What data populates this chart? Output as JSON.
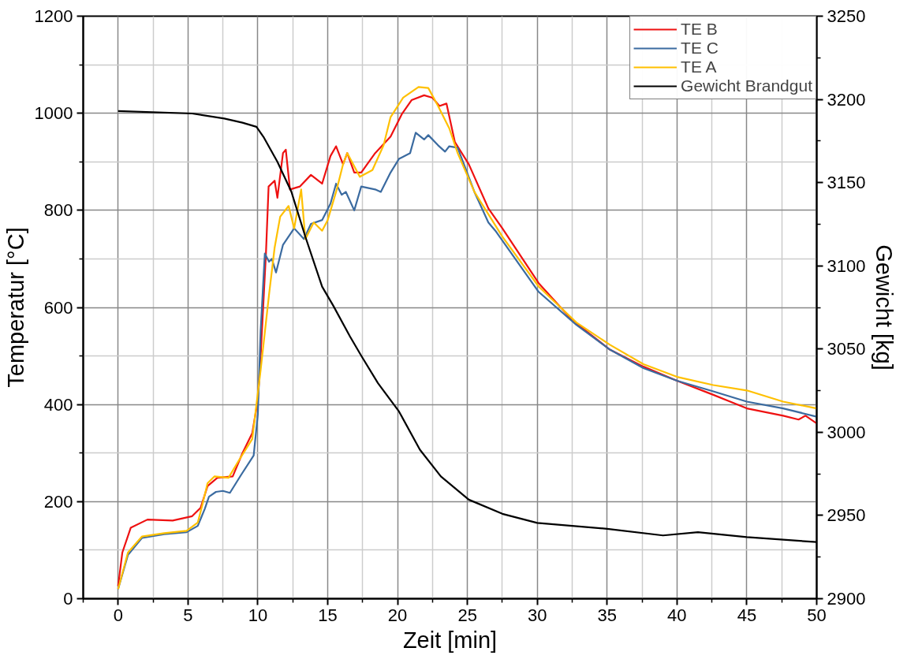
{
  "chart_data": {
    "type": "line",
    "xlabel": "Zeit [min]",
    "ylabel": "Temperatur [°C]",
    "y2label": "Gewicht [kg]",
    "xlim": [
      -2.5,
      50
    ],
    "xticks": [
      0,
      5,
      10,
      15,
      20,
      25,
      30,
      35,
      40,
      45,
      50
    ],
    "ylim": [
      0,
      1200
    ],
    "yticks": [
      0,
      200,
      400,
      600,
      800,
      1000,
      1200
    ],
    "y2lim": [
      2900,
      3250
    ],
    "y2ticks": [
      2900,
      2950,
      3000,
      3050,
      3100,
      3150,
      3200,
      3250
    ],
    "grid": true,
    "legend": "top right",
    "line_style": "solid",
    "marker": "none",
    "series": [
      {
        "name": "TE B",
        "color": "#ee1111",
        "x": [
          0,
          0.3,
          0.9,
          2.1,
          3.9,
          5.3,
          5.9,
          6.4,
          7.1,
          8.2,
          8.9,
          9.6,
          10.0,
          10.2,
          10.58,
          10.77,
          11.2,
          11.4,
          11.8,
          12.0,
          12.3,
          13.0,
          13.8,
          14.6,
          15.2,
          15.6,
          16.1,
          16.4,
          16.9,
          17.4,
          18.4,
          19.5,
          20.3,
          21.0,
          21.9,
          22.5,
          23.0,
          23.5,
          24.1,
          25.1,
          26.5,
          27.5,
          30.1,
          32.5,
          35.2,
          37.6,
          40.0,
          42.6,
          45.0,
          47.6,
          48.7,
          49.2,
          50
        ],
        "values": [
          26,
          95,
          146,
          163,
          161,
          170,
          187,
          232,
          249,
          252,
          300,
          341,
          410,
          500,
          711,
          849,
          861,
          826,
          918,
          925,
          843,
          849,
          873,
          855,
          912,
          932,
          895,
          918,
          878,
          878,
          918,
          952,
          998,
          1027,
          1037,
          1032,
          1015,
          1020,
          941,
          895,
          804,
          763,
          650,
          574,
          513,
          478,
          449,
          420,
          392,
          377,
          369,
          377,
          361
        ]
      },
      {
        "name": "TE C",
        "color": "#3b6ba0",
        "x": [
          0,
          0.7,
          1.7,
          3.3,
          4.9,
          5.7,
          6.2,
          6.5,
          7.0,
          7.5,
          8.0,
          8.8,
          9.7,
          10.0,
          10.2,
          10.5,
          10.8,
          11.0,
          11.3,
          11.8,
          12.6,
          13.3,
          13.8,
          14.6,
          15.2,
          15.6,
          16.0,
          16.3,
          16.9,
          17.4,
          18.4,
          18.8,
          19.5,
          20.1,
          20.9,
          21.3,
          21.9,
          22.2,
          22.9,
          23.4,
          23.7,
          24.3,
          25.5,
          26.5,
          27.0,
          30.1,
          32.8,
          35.2,
          37.6,
          40.0,
          42.6,
          45.0,
          47.6,
          50
        ],
        "values": [
          20,
          90,
          125,
          133,
          137,
          150,
          185,
          210,
          220,
          222,
          218,
          255,
          295,
          380,
          552,
          711,
          694,
          700,
          672,
          729,
          763,
          741,
          772,
          780,
          814,
          855,
          832,
          838,
          800,
          849,
          843,
          838,
          878,
          906,
          918,
          960,
          946,
          955,
          934,
          921,
          932,
          929,
          838,
          775,
          758,
          632,
          564,
          513,
          475,
          449,
          427,
          406,
          392,
          375
        ]
      },
      {
        "name": "TE A",
        "color": "#ffc000",
        "x": [
          0,
          0.7,
          1.7,
          3.3,
          4.9,
          5.7,
          6.0,
          6.4,
          6.9,
          7.9,
          8.6,
          9.6,
          10.2,
          10.8,
          11.2,
          11.6,
          12.2,
          12.6,
          13.1,
          13.4,
          14.0,
          14.6,
          15.0,
          15.6,
          16.1,
          16.4,
          17.3,
          18.2,
          19.0,
          19.5,
          20.4,
          21.5,
          22.2,
          22.9,
          23.7,
          24.3,
          25.5,
          27.5,
          30.1,
          32.8,
          35.2,
          37.6,
          40.0,
          42.6,
          45.0,
          47.6,
          50
        ],
        "values": [
          20,
          95,
          128,
          135,
          140,
          157,
          190,
          238,
          252,
          249,
          283,
          329,
          471,
          626,
          723,
          787,
          809,
          763,
          843,
          741,
          775,
          758,
          780,
          838,
          895,
          918,
          869,
          883,
          934,
          992,
          1032,
          1054,
          1052,
          1015,
          969,
          918,
          838,
          746,
          643,
          569,
          523,
          483,
          457,
          440,
          429,
          406,
          392
        ]
      },
      {
        "name": "Gewicht Brandgut",
        "color": "#000000",
        "axis": "y2",
        "x": [
          0,
          5.3,
          7.6,
          8.9,
          9.9,
          10.4,
          11.4,
          12.4,
          13.4,
          14.6,
          15.4,
          16.6,
          17.4,
          18.6,
          20.1,
          21.6,
          23.1,
          25.1,
          27.5,
          30,
          35,
          39,
          41.5,
          45,
          50
        ],
        "values": [
          3193,
          3191.5,
          3188.5,
          3186,
          3183.5,
          3177.5,
          3162.5,
          3144.5,
          3117.5,
          3087.5,
          3076,
          3057.5,
          3046,
          3029.5,
          3012.5,
          2989.5,
          2973.5,
          2959.5,
          2951,
          2945.5,
          2942,
          2938,
          2940,
          2937,
          2934
        ]
      }
    ]
  }
}
